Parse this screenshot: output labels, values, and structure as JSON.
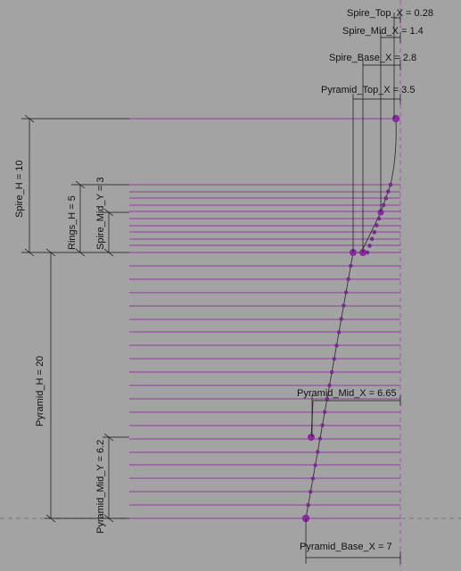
{
  "colors": {
    "background": "#a3a3a3",
    "guide_line": "#8e3f9f",
    "point": "#7a2a8f",
    "dimension": "#111111"
  },
  "dimensions": {
    "spire_top_x": "Spire_Top_X = 0.28",
    "spire_mid_x": "Spire_Mid_X = 1.4",
    "spire_base_x": "Spire_Base_X = 2.8",
    "pyramid_top_x": "Pyramid_Top_X = 3.5",
    "pyramid_mid_x": "Pyramid_Mid_X = 6.65",
    "pyramid_base_x": "Pyramid_Base_X = 7",
    "spire_h": "Spire_H = 10",
    "rings_h": "Rings_H = 5",
    "spire_mid_y": "Spire_Mid_Y = 3",
    "pyramid_h": "Pyramid_H = 20",
    "pyramid_mid_y": "Pyramid_Mid_Y = 6.2"
  }
}
